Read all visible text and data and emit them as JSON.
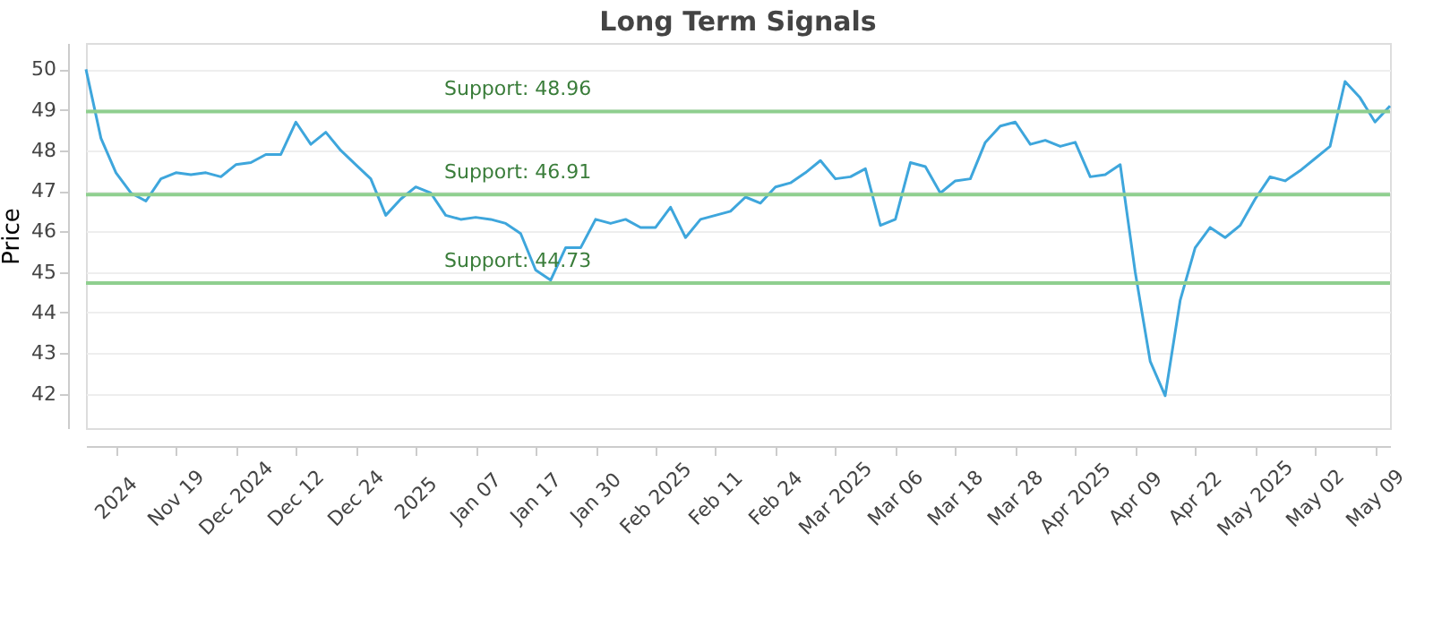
{
  "chart_data": {
    "type": "line",
    "title": "Long Term Signals",
    "ylabel": "Price",
    "categories": [
      null,
      null,
      "2024",
      null,
      null,
      null,
      "Nov 19",
      null,
      null,
      null,
      "Dec 2024",
      null,
      null,
      null,
      "Dec 12",
      null,
      null,
      null,
      "Dec 24",
      null,
      null,
      null,
      "2025",
      null,
      null,
      null,
      "Jan 07",
      null,
      null,
      null,
      "Jan 17",
      null,
      null,
      null,
      "Jan 30",
      null,
      null,
      null,
      "Feb 2025",
      null,
      null,
      null,
      "Feb 11",
      null,
      null,
      null,
      "Feb 24",
      null,
      null,
      null,
      "Mar 2025",
      null,
      null,
      null,
      "Mar 06",
      null,
      null,
      null,
      "Mar 18",
      null,
      null,
      null,
      "Mar 28",
      null,
      null,
      null,
      "Apr 2025",
      null,
      null,
      null,
      "Apr 09",
      null,
      null,
      null,
      "Apr 22",
      null,
      null,
      null,
      "May 2025",
      null,
      null,
      null,
      "May 02",
      null,
      null,
      null,
      "May 09",
      null
    ],
    "series": [
      {
        "color": "#3ea6dc",
        "values": [
          50.0,
          48.3,
          47.45,
          46.95,
          46.75,
          47.3,
          47.45,
          47.4,
          47.45,
          47.35,
          47.65,
          47.7,
          47.9,
          47.9,
          48.7,
          48.15,
          48.45,
          48.0,
          47.65,
          47.3,
          46.4,
          46.8,
          47.1,
          46.95,
          46.4,
          46.3,
          46.35,
          46.3,
          46.2,
          45.95,
          45.05,
          44.8,
          45.6,
          45.6,
          46.3,
          46.2,
          46.3,
          46.1,
          46.1,
          46.6,
          45.85,
          46.3,
          46.4,
          46.5,
          46.85,
          46.7,
          47.1,
          47.2,
          47.45,
          47.75,
          47.3,
          47.35,
          47.55,
          46.15,
          46.3,
          47.7,
          47.6,
          46.95,
          47.25,
          47.3,
          48.2,
          48.6,
          48.7,
          48.15,
          48.25,
          48.1,
          48.2,
          47.35,
          47.4,
          47.65,
          45.0,
          42.8,
          41.95,
          44.3,
          45.6,
          46.1,
          45.85,
          46.15,
          46.8,
          47.35,
          47.25,
          47.5,
          47.8,
          48.1,
          49.7,
          49.3,
          48.7,
          49.1
        ]
      }
    ],
    "ylim": [
      41.15,
      50.65
    ],
    "yticks": [
      42,
      43,
      44,
      45,
      46,
      47,
      48,
      49,
      50
    ],
    "grid": "y",
    "marker": "none",
    "line_style": "solid",
    "ref_lines": [
      {
        "axis": "y",
        "value": 48.96,
        "label": "Support: 48.96",
        "color": "#8fcf8f"
      },
      {
        "axis": "y",
        "value": 46.91,
        "label": "Support: 46.91",
        "color": "#8fcf8f"
      },
      {
        "axis": "y",
        "value": 44.73,
        "label": "Support: 44.73",
        "color": "#8fcf8f"
      }
    ]
  }
}
